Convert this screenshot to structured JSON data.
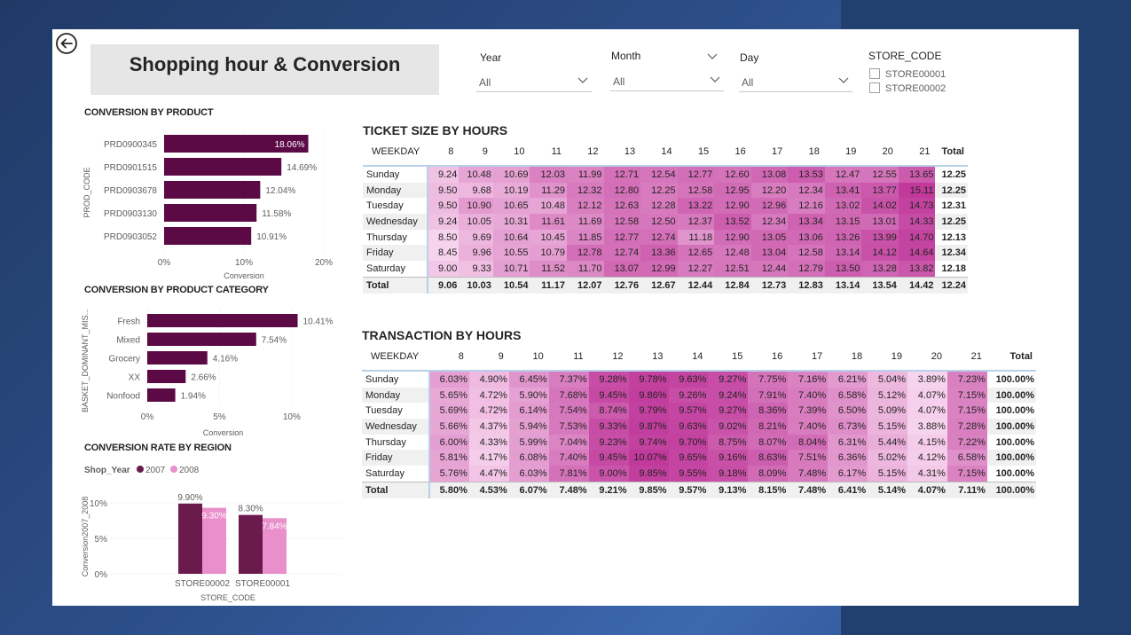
{
  "header": {
    "title": "Shopping hour & Conversion"
  },
  "filters": {
    "year": {
      "label": "Year",
      "value": "All"
    },
    "month": {
      "label": "Month",
      "value": "All"
    },
    "day": {
      "label": "Day",
      "value": "All"
    },
    "store_code": {
      "label": "STORE_CODE",
      "options": [
        "STORE00001",
        "STORE00002"
      ]
    }
  },
  "colors": {
    "bar": "#5c0a46",
    "series2007": "#6b1a4e",
    "series2008": "#e98fcb",
    "heat_low": "#f7d4ee",
    "heat_high": "#c0399b",
    "accent_line": "#b8d0ea"
  },
  "icons": {
    "back": "back-arrow-circle-icon",
    "dropdown": "chevron-down-icon"
  },
  "chart_data": [
    {
      "type": "bar",
      "title": "CONVERSION BY PRODUCT",
      "ylabel": "PROD_CODE",
      "xlabel": "Conversion",
      "categories": [
        "PRD0900345",
        "PRD0901515",
        "PRD0903678",
        "PRD0903130",
        "PRD0903052"
      ],
      "values": [
        18.06,
        14.69,
        12.04,
        11.58,
        10.91
      ],
      "value_labels": [
        "18.06%",
        "14.69%",
        "12.04%",
        "11.58%",
        "10.91%"
      ],
      "xticks": [
        "0%",
        "10%",
        "20%"
      ],
      "xlim": [
        0,
        20
      ]
    },
    {
      "type": "bar",
      "title": "CONVERSION BY PRODUCT CATEGORY",
      "ylabel": "BASKET_DOMINANT_MIS...",
      "xlabel": "Conversion",
      "categories": [
        "Fresh",
        "Mixed",
        "Grocery",
        "XX",
        "Nonfood"
      ],
      "values": [
        10.41,
        7.54,
        4.16,
        2.66,
        1.94
      ],
      "value_labels": [
        "10.41%",
        "7.54%",
        "4.16%",
        "2.66%",
        "1.94%"
      ],
      "xticks": [
        "0%",
        "5%",
        "10%"
      ],
      "xlim": [
        0,
        10.5
      ]
    },
    {
      "type": "bar",
      "title": "CONVERSION RATE BY REGION",
      "legend_title": "Shop_Year",
      "ylabel": "Conversion2007_2008",
      "xlabel": "STORE_CODE",
      "categories": [
        "STORE00002",
        "STORE00001"
      ],
      "series": [
        {
          "name": "2007",
          "values": [
            9.9,
            8.3
          ],
          "labels": [
            "9.90%",
            "8.30%"
          ]
        },
        {
          "name": "2008",
          "values": [
            9.3,
            7.84
          ],
          "labels": [
            "9.30%",
            "7.84%"
          ]
        }
      ],
      "yticks": [
        "0%",
        "5%",
        "10%"
      ],
      "ylim": [
        0,
        10
      ],
      "legend_position": "top-left"
    },
    {
      "type": "table",
      "title": "TICKET SIZE BY HOURS",
      "row_header": "WEEKDAY",
      "columns": [
        "8",
        "9",
        "10",
        "11",
        "12",
        "13",
        "14",
        "15",
        "16",
        "17",
        "18",
        "19",
        "20",
        "21"
      ],
      "total_label": "Total",
      "rows": [
        {
          "day": "Sunday",
          "values": [
            "9.24",
            "10.48",
            "10.69",
            "12.03",
            "11.99",
            "12.71",
            "12.54",
            "12.77",
            "12.60",
            "13.08",
            "13.53",
            "12.47",
            "12.55",
            "13.65"
          ],
          "total": "12.25"
        },
        {
          "day": "Monday",
          "values": [
            "9.50",
            "9.68",
            "10.19",
            "11.29",
            "12.32",
            "12.80",
            "12.25",
            "12.58",
            "12.95",
            "12.20",
            "12.34",
            "13.41",
            "13.77",
            "15.11"
          ],
          "total": "12.25"
        },
        {
          "day": "Tuesday",
          "values": [
            "9.50",
            "10.90",
            "10.65",
            "10.48",
            "12.12",
            "12.63",
            "12.28",
            "13.22",
            "12.90",
            "12.96",
            "12.16",
            "13.02",
            "14.02",
            "14.73"
          ],
          "total": "12.31"
        },
        {
          "day": "Wednesday",
          "values": [
            "9.24",
            "10.05",
            "10.31",
            "11.61",
            "11.69",
            "12.58",
            "12.50",
            "12.37",
            "13.52",
            "12.34",
            "13.34",
            "13.15",
            "13.01",
            "14.33"
          ],
          "total": "12.25"
        },
        {
          "day": "Thursday",
          "values": [
            "8.50",
            "9.69",
            "10.64",
            "10.45",
            "11.85",
            "12.77",
            "12.74",
            "11.18",
            "12.90",
            "13.05",
            "13.06",
            "13.26",
            "13.99",
            "14.70"
          ],
          "total": "12.13"
        },
        {
          "day": "Friday",
          "values": [
            "8.45",
            "9.96",
            "10.55",
            "10.79",
            "12.78",
            "12.74",
            "13.36",
            "12.65",
            "12.48",
            "13.04",
            "12.58",
            "13.14",
            "14.12",
            "14.64"
          ],
          "total": "12.34"
        },
        {
          "day": "Saturday",
          "values": [
            "9.00",
            "9.33",
            "10.71",
            "11.52",
            "11.70",
            "13.07",
            "12.99",
            "12.27",
            "12.51",
            "12.44",
            "12.79",
            "13.50",
            "13.28",
            "13.82"
          ],
          "total": "12.18"
        }
      ],
      "totals": [
        "9.06",
        "10.03",
        "10.54",
        "11.17",
        "12.07",
        "12.76",
        "12.67",
        "12.44",
        "12.84",
        "12.73",
        "12.83",
        "13.14",
        "13.54",
        "14.42"
      ],
      "grand_total": "12.24"
    },
    {
      "type": "table",
      "title": "TRANSACTION BY HOURS",
      "row_header": "WEEKDAY",
      "columns": [
        "8",
        "9",
        "10",
        "11",
        "12",
        "13",
        "14",
        "15",
        "16",
        "17",
        "18",
        "19",
        "20",
        "21"
      ],
      "total_label": "Total",
      "rows": [
        {
          "day": "Sunday",
          "values": [
            "6.03%",
            "4.90%",
            "6.45%",
            "7.37%",
            "9.28%",
            "9.78%",
            "9.63%",
            "9.27%",
            "7.75%",
            "7.16%",
            "6.21%",
            "5.04%",
            "3.89%",
            "7.23%"
          ],
          "total": "100.00%"
        },
        {
          "day": "Monday",
          "values": [
            "5.65%",
            "4.72%",
            "5.90%",
            "7.68%",
            "9.45%",
            "9.86%",
            "9.26%",
            "9.24%",
            "7.91%",
            "7.40%",
            "6.58%",
            "5.12%",
            "4.07%",
            "7.15%"
          ],
          "total": "100.00%"
        },
        {
          "day": "Tuesday",
          "values": [
            "5.69%",
            "4.72%",
            "6.14%",
            "7.54%",
            "8.74%",
            "9.79%",
            "9.57%",
            "9.27%",
            "8.36%",
            "7.39%",
            "6.50%",
            "5.09%",
            "4.07%",
            "7.15%"
          ],
          "total": "100.00%"
        },
        {
          "day": "Wednesday",
          "values": [
            "5.66%",
            "4.37%",
            "5.94%",
            "7.53%",
            "9.33%",
            "9.87%",
            "9.63%",
            "9.02%",
            "8.21%",
            "7.40%",
            "6.73%",
            "5.15%",
            "3.88%",
            "7.28%"
          ],
          "total": "100.00%"
        },
        {
          "day": "Thursday",
          "values": [
            "6.00%",
            "4.33%",
            "5.99%",
            "7.04%",
            "9.23%",
            "9.74%",
            "9.70%",
            "8.75%",
            "8.07%",
            "8.04%",
            "6.31%",
            "5.44%",
            "4.15%",
            "7.22%"
          ],
          "total": "100.00%"
        },
        {
          "day": "Friday",
          "values": [
            "5.81%",
            "4.17%",
            "6.08%",
            "7.40%",
            "9.45%",
            "10.07%",
            "9.65%",
            "9.16%",
            "8.63%",
            "7.51%",
            "6.36%",
            "5.02%",
            "4.12%",
            "6.58%"
          ],
          "total": "100.00%"
        },
        {
          "day": "Saturday",
          "values": [
            "5.76%",
            "4.47%",
            "6.03%",
            "7.81%",
            "9.00%",
            "9.85%",
            "9.55%",
            "9.18%",
            "8.09%",
            "7.48%",
            "6.17%",
            "5.15%",
            "4.31%",
            "7.15%"
          ],
          "total": "100.00%"
        }
      ],
      "totals": [
        "5.80%",
        "4.53%",
        "6.07%",
        "7.48%",
        "9.21%",
        "9.85%",
        "9.57%",
        "9.13%",
        "8.15%",
        "7.48%",
        "6.41%",
        "5.14%",
        "4.07%",
        "7.11%"
      ],
      "grand_total": "100.00%"
    }
  ]
}
